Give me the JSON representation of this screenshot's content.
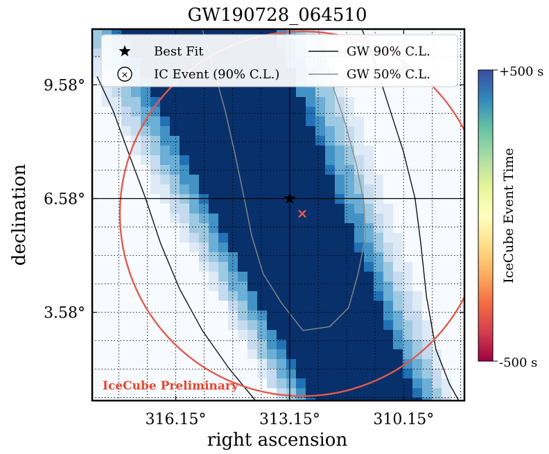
{
  "chart_data": {
    "type": "heatmap",
    "title": "GW190728_064510",
    "xlabel": "right ascension",
    "ylabel": "declination",
    "xlim": [
      318.35,
      308.55
    ],
    "ylim": [
      1.25,
      11.05
    ],
    "x_ticks": [
      {
        "value": 316.15,
        "label": "316.15°"
      },
      {
        "value": 313.15,
        "label": "313.15°"
      },
      {
        "value": 310.15,
        "label": "310.15°"
      }
    ],
    "y_ticks": [
      {
        "value": 9.58,
        "label": "9.58°"
      },
      {
        "value": 6.58,
        "label": "6.58°"
      },
      {
        "value": 3.58,
        "label": "3.58°"
      }
    ],
    "grid": true,
    "legend": {
      "placement": "top",
      "entries": [
        {
          "key": "best_fit",
          "label": "Best Fit",
          "marker": "star"
        },
        {
          "key": "ic_event",
          "label": "IC Event (90% C.L.)",
          "marker": "circle-x"
        },
        {
          "key": "gw90",
          "label": "GW 90% C.L.",
          "marker": "line",
          "color": "#111111"
        },
        {
          "key": "gw50",
          "label": "GW 50% C.L.",
          "marker": "line",
          "color": "#8a8a8a"
        }
      ]
    },
    "best_fit": {
      "ra": 313.15,
      "dec": 6.58
    },
    "ic_event": {
      "ra": 312.82,
      "dec": 6.18,
      "radius_deg": 4.8,
      "color": "#e05a4f"
    },
    "gw90_contour": [
      [
        318.22,
        9.8
      ],
      [
        317.8,
        8.9
      ],
      [
        317.4,
        7.8
      ],
      [
        316.95,
        6.6
      ],
      [
        316.55,
        5.4
      ],
      [
        316.05,
        4.2
      ],
      [
        315.45,
        3.1
      ],
      [
        314.75,
        2.1
      ],
      [
        314.05,
        1.25
      ]
    ],
    "gw90_contour_right": [
      [
        311.25,
        11.05
      ],
      [
        310.95,
        10.3
      ],
      [
        310.6,
        9.2
      ],
      [
        310.15,
        7.8
      ],
      [
        309.85,
        6.58
      ],
      [
        309.7,
        5.4
      ],
      [
        309.55,
        4.0
      ],
      [
        309.3,
        2.6
      ],
      [
        308.95,
        1.7
      ],
      [
        308.7,
        1.25
      ]
    ],
    "gw50_contour": [
      [
        315.45,
        11.05
      ],
      [
        315.15,
        10.0
      ],
      [
        314.85,
        8.9
      ],
      [
        314.6,
        7.8
      ],
      [
        314.35,
        6.6
      ],
      [
        314.15,
        5.6
      ],
      [
        313.85,
        4.6
      ],
      [
        313.35,
        3.8
      ],
      [
        312.8,
        3.1
      ],
      [
        312.1,
        3.2
      ],
      [
        311.6,
        3.7
      ],
      [
        311.35,
        4.6
      ],
      [
        311.15,
        5.6
      ],
      [
        311.2,
        6.5
      ],
      [
        311.4,
        7.5
      ],
      [
        311.7,
        8.6
      ],
      [
        312.1,
        9.8
      ],
      [
        312.4,
        11.05
      ]
    ],
    "heatmap": {
      "colorscale": [
        "#f7fbff",
        "#deebf7",
        "#c6dbef",
        "#9ecae1",
        "#6baed6",
        "#4292c6",
        "#2171b5",
        "#08306b"
      ],
      "core_color": "#08306b",
      "ridge_top": {
        "ra": 315.6,
        "dec": 11.05
      },
      "ridge_bottom": {
        "ra": 311.2,
        "dec": 1.25
      },
      "half_width_top": 2.05,
      "half_width_bottom": 1.4
    },
    "colorbar": {
      "label": "IceCube Event Time",
      "top_label": "+500 s",
      "bottom_label": "-500 s",
      "colors": [
        "#3b4ea0",
        "#3288bd",
        "#66c2a5",
        "#abdda4",
        "#e6f598",
        "#ffffbf",
        "#fee08b",
        "#fdae61",
        "#f46d43",
        "#d53e4f",
        "#9e0142"
      ]
    },
    "annotation": {
      "text": "IceCube Preliminary",
      "color": "#e8452c"
    }
  }
}
